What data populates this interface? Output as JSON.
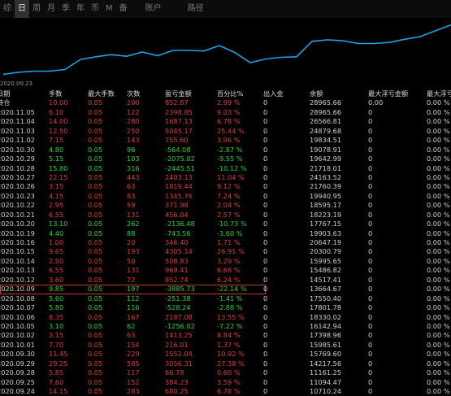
{
  "tabs": [
    {
      "label": "综"
    },
    {
      "label": "日",
      "active": true
    },
    {
      "label": "周"
    },
    {
      "label": "月"
    },
    {
      "label": "季"
    },
    {
      "label": "年"
    },
    {
      "label": "币"
    },
    {
      "label": "M"
    },
    {
      "label": "备"
    },
    {
      "label": "账户"
    },
    {
      "label": "路径"
    }
  ],
  "chart": {
    "start_date": "2020.09.23",
    "line_color": "#1aa3e8",
    "values": [
      13500,
      13900,
      14100,
      14100,
      14400,
      16300,
      16800,
      17200,
      16900,
      17700,
      17000,
      18000,
      18000,
      17900,
      18900,
      17600,
      15700,
      16400,
      16700,
      16800,
      19700,
      20000,
      19800,
      19300,
      19300,
      19500,
      20100,
      20600,
      21700,
      22800
    ]
  },
  "header": [
    "日期",
    "手数",
    "最大手数",
    "次数",
    "盈亏金额",
    "百分比%",
    "出入金",
    "余额",
    "最大浮亏金额",
    "最大浮亏"
  ],
  "rows": [
    {
      "date": "持仓",
      "lots": "10.00",
      "max": "0.05",
      "count": "200",
      "pnl": "852.87",
      "pct": "2.99 %",
      "io": "0",
      "bal": "28965.66",
      "flt": "0.00",
      "fltp": "0.00 %",
      "c": "red"
    },
    {
      "date": "2020.11.05",
      "lots": "6.10",
      "max": "0.05",
      "count": "122",
      "pnl": "2398.85",
      "pct": "9.03 %",
      "io": "0",
      "bal": "28965.66",
      "flt": "0",
      "fltp": "0.00 %",
      "c": "red"
    },
    {
      "date": "2020.11.04",
      "lots": "14.00",
      "max": "0.05",
      "count": "280",
      "pnl": "1687.13",
      "pct": "6.78 %",
      "io": "0",
      "bal": "26566.81",
      "flt": "0",
      "fltp": "0.00 %",
      "c": "red"
    },
    {
      "date": "2020.11.03",
      "lots": "12.50",
      "max": "0.05",
      "count": "250",
      "pnl": "5045.17",
      "pct": "25.44 %",
      "io": "0",
      "bal": "24879.68",
      "flt": "0",
      "fltp": "0.00 %",
      "c": "red"
    },
    {
      "date": "2020.11.02",
      "lots": "7.15",
      "max": "0.05",
      "count": "143",
      "pnl": "755.60",
      "pct": "3.96 %",
      "io": "0",
      "bal": "19834.51",
      "flt": "0",
      "fltp": "0.00 %",
      "c": "red"
    },
    {
      "date": "2020.10.30",
      "lots": "4.80",
      "max": "0.05",
      "count": "96",
      "pnl": "-564.08",
      "pct": "-2.87 %",
      "io": "0",
      "bal": "19078.91",
      "flt": "0",
      "fltp": "0.00 %",
      "c": "green"
    },
    {
      "date": "2020.10.29",
      "lots": "5.15",
      "max": "0.05",
      "count": "103",
      "pnl": "-2075.02",
      "pct": "-9.55 %",
      "io": "0",
      "bal": "19642.99",
      "flt": "0",
      "fltp": "0.00 %",
      "c": "green"
    },
    {
      "date": "2020.10.28",
      "lots": "15.80",
      "max": "0.05",
      "count": "316",
      "pnl": "-2445.51",
      "pct": "-10.12 %",
      "io": "0",
      "bal": "21718.01",
      "flt": "0",
      "fltp": "0.00 %",
      "c": "green"
    },
    {
      "date": "2020.10.27",
      "lots": "22.15",
      "max": "0.05",
      "count": "443",
      "pnl": "2403.13",
      "pct": "11.04 %",
      "io": "0",
      "bal": "24163.52",
      "flt": "0",
      "fltp": "0.00 %",
      "c": "red"
    },
    {
      "date": "2020.10.26",
      "lots": "3.15",
      "max": "0.05",
      "count": "63",
      "pnl": "1819.44",
      "pct": "9.12 %",
      "io": "0",
      "bal": "21760.39",
      "flt": "0",
      "fltp": "0.00 %",
      "c": "red"
    },
    {
      "date": "2020.10.23",
      "lots": "4.15",
      "max": "0.05",
      "count": "83",
      "pnl": "1345.76",
      "pct": "7.24 %",
      "io": "0",
      "bal": "19940.95",
      "flt": "0",
      "fltp": "0.00 %",
      "c": "red"
    },
    {
      "date": "2020.10.22",
      "lots": "2.95",
      "max": "0.05",
      "count": "59",
      "pnl": "371.98",
      "pct": "2.04 %",
      "io": "0",
      "bal": "18595.17",
      "flt": "0",
      "fltp": "0.00 %",
      "c": "red"
    },
    {
      "date": "2020.10.21",
      "lots": "6.55",
      "max": "0.05",
      "count": "131",
      "pnl": "456.04",
      "pct": "2.57 %",
      "io": "0",
      "bal": "18223.19",
      "flt": "0",
      "fltp": "0.00 %",
      "c": "red"
    },
    {
      "date": "2020.10.20",
      "lots": "13.10",
      "max": "0.05",
      "count": "262",
      "pnl": "-2136.48",
      "pct": "-10.73 %",
      "io": "0",
      "bal": "17767.15",
      "flt": "0",
      "fltp": "0.00 %",
      "c": "green"
    },
    {
      "date": "2020.10.19",
      "lots": "4.40",
      "max": "0.05",
      "count": "88",
      "pnl": "-743.56",
      "pct": "-3.60 %",
      "io": "0",
      "bal": "19903.63",
      "flt": "0",
      "fltp": "0.00 %",
      "c": "green"
    },
    {
      "date": "2020.10.16",
      "lots": "1.00",
      "max": "0.05",
      "count": "20",
      "pnl": "346.40",
      "pct": "1.71 %",
      "io": "0",
      "bal": "20647.19",
      "flt": "0",
      "fltp": "0.00 %",
      "c": "red"
    },
    {
      "date": "2020.10.15",
      "lots": "9.65",
      "max": "0.05",
      "count": "193",
      "pnl": "4305.14",
      "pct": "26.91 %",
      "io": "0",
      "bal": "20300.79",
      "flt": "0",
      "fltp": "0.00 %",
      "c": "red"
    },
    {
      "date": "2020.10.14",
      "lots": "2.50",
      "max": "0.05",
      "count": "50",
      "pnl": "508.83",
      "pct": "3.29 %",
      "io": "0",
      "bal": "15995.65",
      "flt": "0",
      "fltp": "0.00 %",
      "c": "red"
    },
    {
      "date": "2020.10.13",
      "lots": "6.55",
      "max": "0.05",
      "count": "131",
      "pnl": "969.41",
      "pct": "6.68 %",
      "io": "0",
      "bal": "15486.82",
      "flt": "0",
      "fltp": "0.00 %",
      "c": "red"
    },
    {
      "date": "2020.10.12",
      "lots": "3.60",
      "max": "0.05",
      "count": "72",
      "pnl": "852.74",
      "pct": "6.24 %",
      "io": "0",
      "bal": "14517.41",
      "flt": "0",
      "fltp": "0.00 %",
      "c": "red"
    },
    {
      "date": "2020.10.09",
      "lots": "9.85",
      "max": "0.05",
      "count": "197",
      "pnl": "-3885.73",
      "pct": "-22.14 %",
      "io": "0",
      "bal": "13664.67",
      "flt": "0",
      "fltp": "0.00 %",
      "c": "green",
      "hl": true
    },
    {
      "date": "2020.10.08",
      "lots": "5.60",
      "max": "0.05",
      "count": "112",
      "pnl": "-251.38",
      "pct": "-1.41 %",
      "io": "0",
      "bal": "17550.40",
      "flt": "0",
      "fltp": "0.00 %",
      "c": "green"
    },
    {
      "date": "2020.10.07",
      "lots": "5.80",
      "max": "0.05",
      "count": "116",
      "pnl": "-528.24",
      "pct": "-2.88 %",
      "io": "0",
      "bal": "17801.78",
      "flt": "0",
      "fltp": "0.00 %",
      "c": "green"
    },
    {
      "date": "2020.10.06",
      "lots": "8.35",
      "max": "0.05",
      "count": "167",
      "pnl": "2187.08",
      "pct": "13.55 %",
      "io": "0",
      "bal": "18330.02",
      "flt": "0",
      "fltp": "0.00 %",
      "c": "red"
    },
    {
      "date": "2020.10.05",
      "lots": "3.10",
      "max": "0.05",
      "count": "62",
      "pnl": "-1256.02",
      "pct": "-7.22 %",
      "io": "0",
      "bal": "16142.94",
      "flt": "0",
      "fltp": "0.00 %",
      "c": "green"
    },
    {
      "date": "2020.10.02",
      "lots": "3.15",
      "max": "0.05",
      "count": "63",
      "pnl": "1413.25",
      "pct": "8.84 %",
      "io": "0",
      "bal": "17398.96",
      "flt": "0",
      "fltp": "0.00 %",
      "c": "red"
    },
    {
      "date": "2020.10.01",
      "lots": "7.70",
      "max": "0.05",
      "count": "154",
      "pnl": "216.01",
      "pct": "1.37 %",
      "io": "0",
      "bal": "15985.61",
      "flt": "0",
      "fltp": "0.00 %",
      "c": "red"
    },
    {
      "date": "2020.09.30",
      "lots": "11.45",
      "max": "0.05",
      "count": "229",
      "pnl": "1552.04",
      "pct": "10.92 %",
      "io": "0",
      "bal": "15769.60",
      "flt": "0",
      "fltp": "0.00 %",
      "c": "red"
    },
    {
      "date": "2020.09.29",
      "lots": "29.25",
      "max": "0.05",
      "count": "585",
      "pnl": "3056.31",
      "pct": "27.38 %",
      "io": "0",
      "bal": "14217.56",
      "flt": "0",
      "fltp": "0.00 %",
      "c": "red"
    },
    {
      "date": "2020.09.28",
      "lots": "5.85",
      "max": "0.05",
      "count": "117",
      "pnl": "66.78",
      "pct": "0.60 %",
      "io": "0",
      "bal": "11161.25",
      "flt": "0",
      "fltp": "0.00 %",
      "c": "red"
    },
    {
      "date": "2020.09.25",
      "lots": "7.60",
      "max": "0.05",
      "count": "152",
      "pnl": "384.23",
      "pct": "3.59 %",
      "io": "0",
      "bal": "11094.47",
      "flt": "0",
      "fltp": "0.00 %",
      "c": "red"
    },
    {
      "date": "2020.09.24",
      "lots": "14.15",
      "max": "0.05",
      "count": "283",
      "pnl": "680.25",
      "pct": "6.78 %",
      "io": "0",
      "bal": "10710.24",
      "flt": "0",
      "fltp": "0.00 %",
      "c": "red"
    }
  ]
}
